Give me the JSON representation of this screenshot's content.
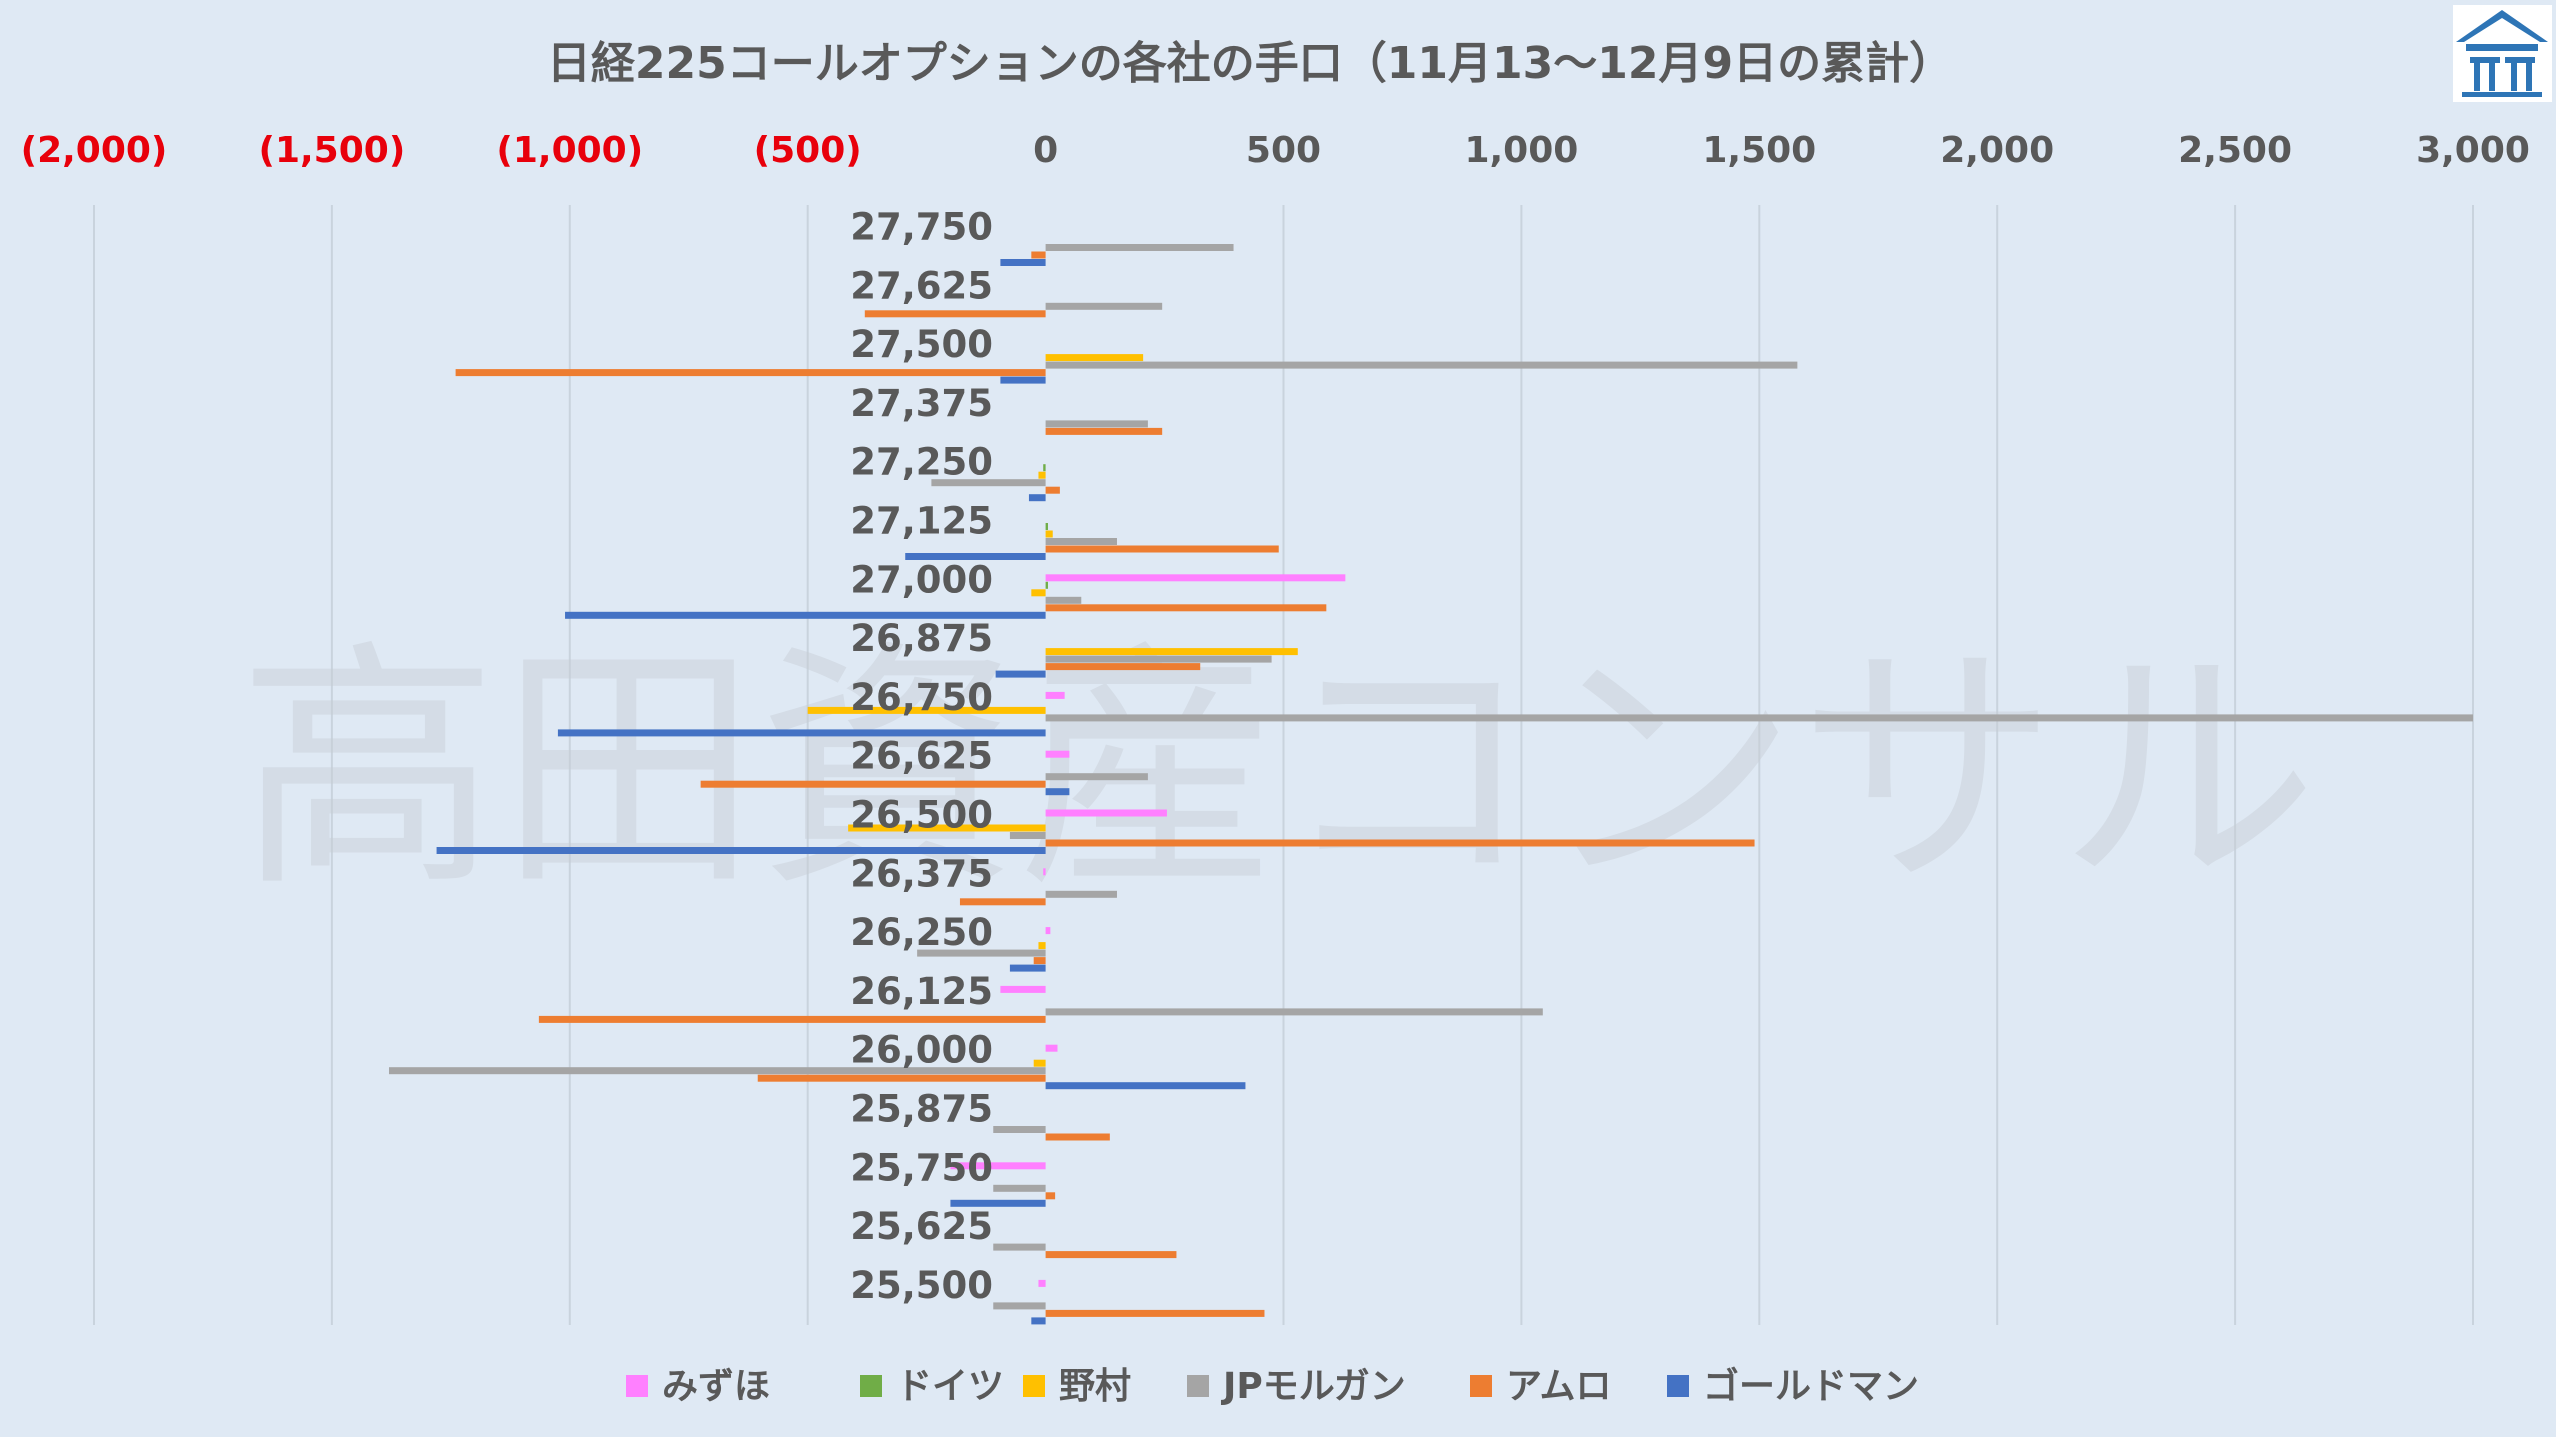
{
  "chart_data": {
    "type": "bar",
    "orientation": "horizontal",
    "title": "日経225コールオプションの各社の手口（11月13〜12月9日の累計）",
    "watermark": "高田資産コンサル",
    "xlim": [
      -2000,
      3000
    ],
    "x_ticks": [
      {
        "value": -2000,
        "label": "(2,000)"
      },
      {
        "value": -1500,
        "label": "(1,500)"
      },
      {
        "value": -1000,
        "label": "(1,000)"
      },
      {
        "value": -500,
        "label": "(500)"
      },
      {
        "value": 0,
        "label": "0"
      },
      {
        "value": 500,
        "label": "500"
      },
      {
        "value": 1000,
        "label": "1,000"
      },
      {
        "value": 1500,
        "label": "1,500"
      },
      {
        "value": 2000,
        "label": "2,000"
      },
      {
        "value": 2500,
        "label": "2,500"
      },
      {
        "value": 3000,
        "label": "3,000"
      }
    ],
    "negative_tick_color": "#e8000b",
    "positive_tick_color": "#595959",
    "grid": true,
    "legend_position": "bottom",
    "categories": [
      "27,750",
      "27,625",
      "27,500",
      "27,375",
      "27,250",
      "27,125",
      "27,000",
      "26,875",
      "26,750",
      "26,625",
      "26,500",
      "26,375",
      "26,250",
      "26,125",
      "26,000",
      "25,875",
      "25,750",
      "25,625",
      "25,500"
    ],
    "series": [
      {
        "name": "みずほ",
        "color": "#ff80ff",
        "values": [
          0,
          0,
          0,
          0,
          0,
          0,
          630,
          0,
          40,
          50,
          255,
          -5,
          10,
          -95,
          25,
          0,
          -200,
          0,
          -15
        ]
      },
      {
        "name": "ドイツ",
        "color": "#70ad47",
        "values": [
          0,
          0,
          0,
          0,
          -5,
          5,
          5,
          0,
          0,
          0,
          0,
          0,
          0,
          0,
          0,
          0,
          0,
          0,
          0
        ]
      },
      {
        "name": "野村",
        "color": "#ffc000",
        "values": [
          0,
          0,
          205,
          0,
          -15,
          15,
          -30,
          530,
          -500,
          0,
          -415,
          0,
          -15,
          0,
          -25,
          0,
          0,
          0,
          0
        ]
      },
      {
        "name": "JPモルガン",
        "color": "#a5a5a5",
        "values": [
          395,
          245,
          1580,
          215,
          -240,
          150,
          75,
          475,
          3000,
          215,
          -75,
          150,
          -270,
          1045,
          -1380,
          -110,
          -110,
          -110,
          -110
        ]
      },
      {
        "name": "アムロ",
        "color": "#ed7d31",
        "values": [
          -30,
          -380,
          -1240,
          245,
          30,
          490,
          590,
          325,
          0,
          -725,
          1490,
          -180,
          -25,
          -1065,
          -605,
          135,
          20,
          275,
          460
        ]
      },
      {
        "name": "ゴールドマン",
        "color": "#4472c4",
        "values": [
          -95,
          0,
          -95,
          0,
          -35,
          -295,
          -1010,
          -105,
          -1025,
          50,
          -1280,
          0,
          -75,
          0,
          420,
          0,
          -200,
          0,
          -30
        ]
      }
    ]
  }
}
